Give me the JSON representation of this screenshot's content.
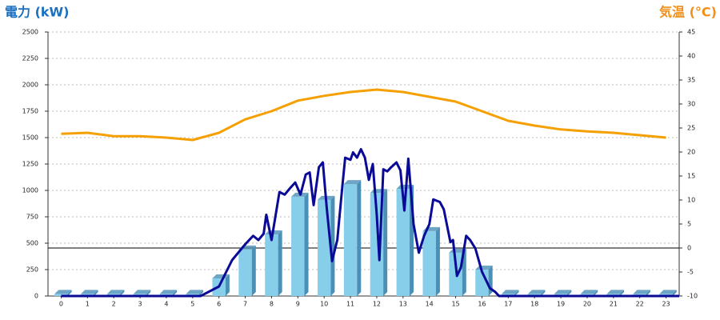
{
  "chart_data": {
    "type": "bar",
    "title_left": "電力 (kW)",
    "title_right": "気温 (°C)",
    "categories": [
      0,
      1,
      2,
      3,
      4,
      5,
      6,
      7,
      8,
      9,
      10,
      11,
      12,
      13,
      14,
      15,
      16,
      17,
      18,
      19,
      20,
      21,
      22,
      23
    ],
    "xlim": [
      -0.5,
      23.5
    ],
    "ylim": [
      0,
      2500
    ],
    "yticks": [
      0,
      250,
      500,
      750,
      1000,
      1250,
      1500,
      1750,
      2000,
      2250,
      2500
    ],
    "y2lim": [
      -10,
      45
    ],
    "y2ticks": [
      -10,
      -5,
      0,
      5,
      10,
      15,
      20,
      25,
      30,
      35,
      40,
      45
    ],
    "grid": true,
    "reference_line": {
      "axis": "y2",
      "value": 0
    },
    "series": [
      {
        "type": "bar",
        "color": "#87ceeb",
        "side_color": "#4a8fb5",
        "values": [
          20,
          20,
          20,
          20,
          20,
          20,
          167,
          440,
          583,
          940,
          910,
          1060,
          975,
          1015,
          615,
          410,
          250,
          20,
          20,
          20,
          20,
          20,
          20,
          20
        ]
      },
      {
        "type": "line",
        "color": "#0a0a96",
        "x": [
          0,
          1,
          2,
          3,
          4,
          5,
          5.3,
          6,
          6.5,
          7,
          7.3,
          7.5,
          7.7,
          7.8,
          8,
          8.3,
          8.5,
          8.7,
          8.9,
          9.1,
          9.3,
          9.45,
          9.6,
          9.8,
          9.95,
          10.1,
          10.3,
          10.5,
          10.7,
          10.8,
          11,
          11.1,
          11.25,
          11.4,
          11.55,
          11.7,
          11.85,
          12,
          12.1,
          12.25,
          12.4,
          12.55,
          12.75,
          12.9,
          13.05,
          13.2,
          13.4,
          13.6,
          13.8,
          14,
          14.15,
          14.4,
          14.55,
          14.8,
          14.9,
          15.05,
          15.2,
          15.4,
          15.55,
          15.75,
          16,
          16.3,
          16.5,
          16.65,
          17,
          23.5
        ],
        "values": [
          0,
          0,
          0,
          0,
          0,
          0,
          0,
          90,
          340,
          490,
          570,
          530,
          590,
          770,
          530,
          985,
          960,
          1020,
          1075,
          960,
          1150,
          1170,
          860,
          1220,
          1265,
          830,
          330,
          530,
          1060,
          1310,
          1290,
          1360,
          1310,
          1390,
          1310,
          1100,
          1250,
          770,
          340,
          1200,
          1180,
          1220,
          1265,
          1190,
          810,
          1300,
          680,
          410,
          570,
          680,
          915,
          890,
          820,
          510,
          530,
          190,
          270,
          570,
          530,
          450,
          230,
          75,
          40,
          0,
          0,
          0
        ]
      },
      {
        "type": "line",
        "axis": "y2",
        "color": "#f5a000",
        "values": [
          23.8,
          24,
          23.3,
          23.3,
          23,
          22.5,
          24,
          26.8,
          28.5,
          30.7,
          31.7,
          32.5,
          33,
          32.5,
          31.5,
          30.5,
          28.5,
          26.5,
          25.5,
          24.7,
          24.3,
          24,
          23.5,
          23
        ]
      }
    ]
  }
}
